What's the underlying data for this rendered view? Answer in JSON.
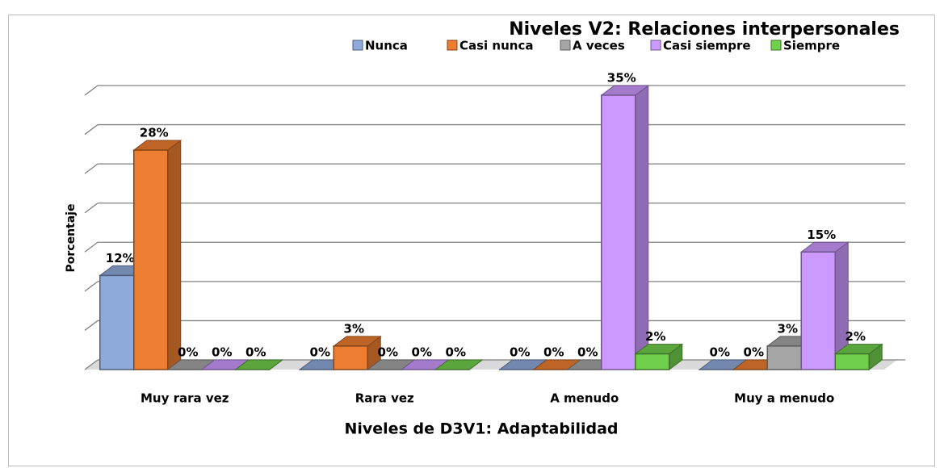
{
  "chart_data": {
    "type": "bar3d",
    "title": "Niveles V2: Relaciones interpersonales",
    "xlabel": "Niveles de D3V1: Adaptabilidad",
    "ylabel": "Porcentaje",
    "categories": [
      "Muy rara vez",
      "Rara vez",
      "A menudo",
      "Muy a menudo"
    ],
    "series": [
      {
        "name": "Nunca",
        "color": "#8eaadb",
        "values": [
          12,
          0,
          0,
          0
        ],
        "value_labels": [
          "12%",
          "0%",
          "0%",
          "0%"
        ]
      },
      {
        "name": "Casi nunca",
        "color": "#ed7d31",
        "values": [
          28,
          3,
          0,
          0
        ],
        "value_labels": [
          "28%",
          "3%",
          "0%",
          "0%"
        ]
      },
      {
        "name": "A veces",
        "color": "#a5a5a5",
        "values": [
          0,
          0,
          0,
          3
        ],
        "value_labels": [
          "0%",
          "0%",
          "0%",
          "3%"
        ]
      },
      {
        "name": "Casi siempre",
        "color": "#cc99ff",
        "values": [
          0,
          0,
          35,
          15
        ],
        "value_labels": [
          "0%",
          "0%",
          "35%",
          "15%"
        ]
      },
      {
        "name": "Siempre",
        "color": "#70d04c",
        "values": [
          0,
          0,
          2,
          2
        ],
        "value_labels": [
          "0%",
          "0%",
          "2%",
          "2%"
        ]
      }
    ],
    "ylim": [
      0,
      35
    ],
    "yticks": [
      0,
      5,
      10,
      15,
      20,
      25,
      30,
      35
    ],
    "grid": true,
    "legend": "top"
  }
}
